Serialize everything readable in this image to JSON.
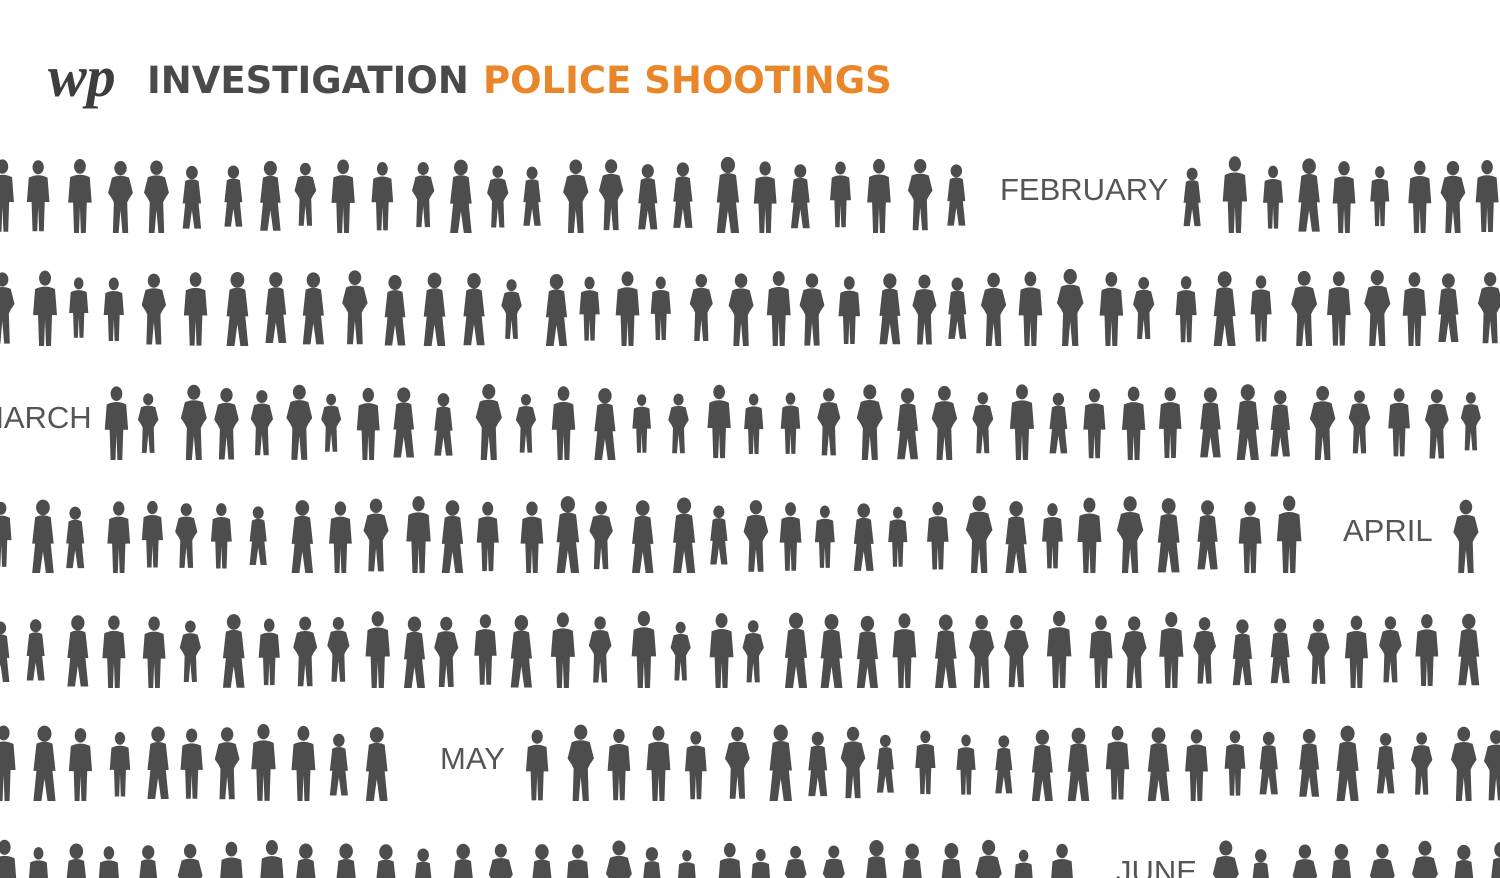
{
  "header": {
    "logo": "wp",
    "kicker": "INVESTIGATION",
    "title": "POLICE SHOOTINGS"
  },
  "months": [
    "FEBRUARY",
    "MARCH",
    "APRIL",
    "MAY",
    "JUNE"
  ]
}
